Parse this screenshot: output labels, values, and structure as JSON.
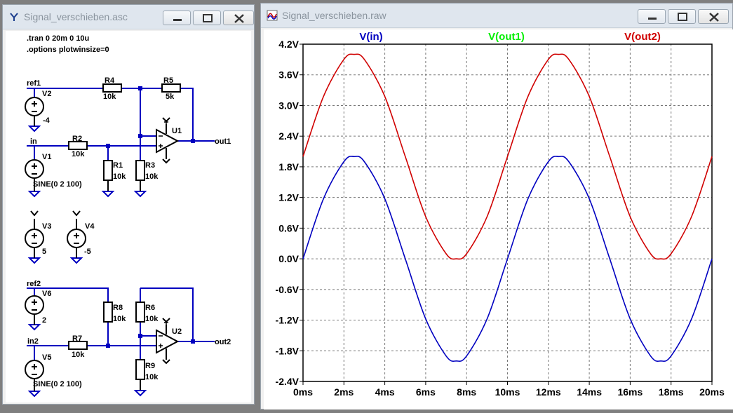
{
  "schematic": {
    "title": "Signal_verschieben.asc",
    "directives": [
      ".tran 0 20m 0 10u",
      ".options plotwinsize=0"
    ],
    "labels": {
      "ref1": "ref1",
      "in": "in",
      "out1": "out1",
      "ref2": "ref2",
      "in2": "in2",
      "out2": "out2",
      "V1": "V1",
      "V1_val": "SINE(0 2 100)",
      "V2": "V2",
      "V2_val": "-4",
      "V3": "V3",
      "V3_val": "5",
      "V4": "V4",
      "V4_val": "-5",
      "V5": "V5",
      "V5_val": "SINE(0 2 100)",
      "V6": "V6",
      "V6_val": "2",
      "R1": "R1",
      "R1_val": "10k",
      "R2": "R2",
      "R2_val": "10k",
      "R3": "R3",
      "R3_val": "10k",
      "R4": "R4",
      "R4_val": "10k",
      "R5": "R5",
      "R5_val": "5k",
      "R6": "R6",
      "R6_val": "10k",
      "R7": "R7",
      "R7_val": "10k",
      "R8": "R8",
      "R8_val": "10k",
      "R9": "R9",
      "R9_val": "10k",
      "U1": "U1",
      "U2": "U2",
      "plus": "+",
      "minus": "-"
    }
  },
  "waveform": {
    "title": "Signal_verschieben.raw"
  },
  "chart_data": {
    "type": "line",
    "xlim": [
      0,
      20
    ],
    "ylim": [
      -2.4,
      4.2
    ],
    "x_ticks": [
      "0ms",
      "2ms",
      "4ms",
      "6ms",
      "8ms",
      "10ms",
      "12ms",
      "14ms",
      "16ms",
      "18ms",
      "20ms"
    ],
    "y_ticks": [
      "4.2V",
      "3.6V",
      "3.0V",
      "2.4V",
      "1.8V",
      "1.2V",
      "0.6V",
      "0.0V",
      "-0.6V",
      "-1.2V",
      "-1.8V",
      "-2.4V"
    ],
    "grid": true,
    "legend_placement": "top",
    "series": [
      {
        "name": "V(in)",
        "color": "#0000c0",
        "points": [
          [
            0,
            0
          ],
          [
            1,
            1.176
          ],
          [
            2,
            1.902
          ],
          [
            2.5,
            2.0
          ],
          [
            3,
            1.902
          ],
          [
            4,
            1.176
          ],
          [
            5,
            0
          ],
          [
            6,
            -1.176
          ],
          [
            7,
            -1.902
          ],
          [
            7.5,
            -2.0
          ],
          [
            8,
            -1.902
          ],
          [
            9,
            -1.176
          ],
          [
            10,
            0
          ],
          [
            11,
            1.176
          ],
          [
            12,
            1.902
          ],
          [
            12.5,
            2.0
          ],
          [
            13,
            1.902
          ],
          [
            14,
            1.176
          ],
          [
            15,
            0
          ],
          [
            16,
            -1.176
          ],
          [
            17,
            -1.902
          ],
          [
            17.5,
            -2.0
          ],
          [
            18,
            -1.902
          ],
          [
            19,
            -1.176
          ],
          [
            20,
            0
          ]
        ]
      },
      {
        "name": "V(out1)",
        "color": "#00ee00",
        "points": []
      },
      {
        "name": "V(out2)",
        "color": "#d00000",
        "points": [
          [
            0,
            2.0
          ],
          [
            1,
            3.176
          ],
          [
            2,
            3.902
          ],
          [
            2.5,
            4.0
          ],
          [
            3,
            3.902
          ],
          [
            4,
            3.176
          ],
          [
            5,
            2.0
          ],
          [
            6,
            0.824
          ],
          [
            7,
            0.098
          ],
          [
            7.5,
            0.0
          ],
          [
            8,
            0.098
          ],
          [
            9,
            0.824
          ],
          [
            10,
            2.0
          ],
          [
            11,
            3.176
          ],
          [
            12,
            3.902
          ],
          [
            12.5,
            4.0
          ],
          [
            13,
            3.902
          ],
          [
            14,
            3.176
          ],
          [
            15,
            2.0
          ],
          [
            16,
            0.824
          ],
          [
            17,
            0.098
          ],
          [
            17.5,
            0.0
          ],
          [
            18,
            0.098
          ],
          [
            19,
            0.824
          ],
          [
            20,
            2.0
          ]
        ]
      }
    ]
  }
}
